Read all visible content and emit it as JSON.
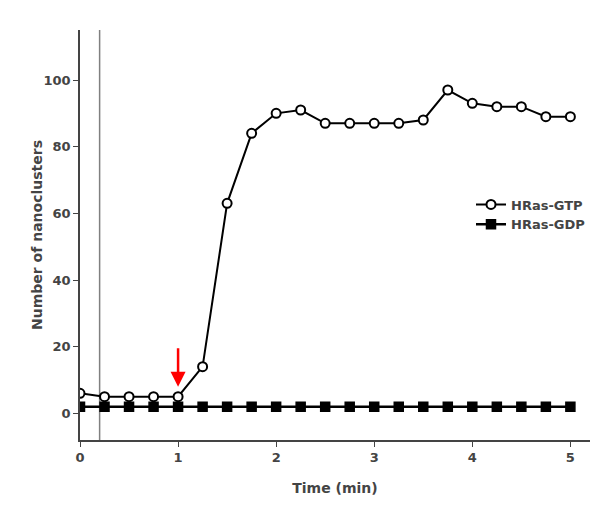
{
  "chart_data": {
    "type": "line",
    "x": [
      0,
      0.25,
      0.5,
      0.75,
      1.0,
      1.25,
      1.5,
      1.75,
      2.0,
      2.25,
      2.5,
      2.75,
      3.0,
      3.25,
      3.5,
      3.75,
      4.0,
      4.25,
      4.5,
      4.75,
      5.0
    ],
    "series": [
      {
        "name": "HRas-GTP",
        "color": "#000000",
        "marker": "open_circle",
        "values": [
          6,
          5,
          5,
          5,
          5,
          14,
          63,
          84,
          90,
          91,
          87,
          87,
          87,
          87,
          88,
          97,
          93,
          92,
          92,
          89,
          89
        ]
      },
      {
        "name": "HRas-GDP",
        "color": "#000000",
        "marker": "square",
        "values": [
          2,
          2,
          2,
          2,
          2,
          2,
          2,
          2,
          2,
          2,
          2,
          2,
          2,
          2,
          2,
          2,
          2,
          2,
          2,
          2,
          2
        ]
      }
    ],
    "xlabel": "Time (min)",
    "ylabel": "Number of nanoclusters",
    "xlim": [
      0,
      5.2
    ],
    "ylim": [
      -8,
      115
    ],
    "xticks": [
      0,
      1,
      2,
      3,
      4,
      5
    ],
    "yticks": [
      0,
      20,
      40,
      60,
      80,
      100
    ],
    "grid": false,
    "legend": "center right",
    "vlines": [
      {
        "x": 0.2,
        "color": "#808080"
      }
    ],
    "arrows": [
      {
        "x": 1.0,
        "y_start": 20,
        "y_end": 8,
        "color": "#ff0000"
      }
    ]
  }
}
